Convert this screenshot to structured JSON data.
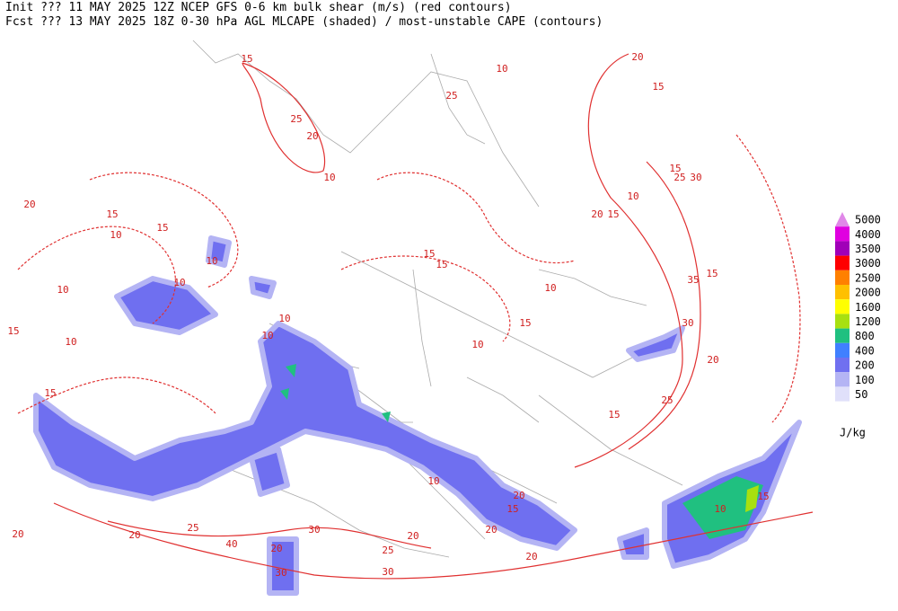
{
  "header": {
    "line1": "Init  ??? 11 MAY 2025 12Z  NCEP GFS 0-6 km bulk shear (m/s) (red contours)",
    "line2": "Fcst ??? 13 MAY 2025 18Z  0-30 hPa AGL MLCAPE (shaded) / most-unstable CAPE (contours)"
  },
  "legend": {
    "levels": [
      5000,
      4000,
      3500,
      3000,
      2500,
      2000,
      1600,
      1200,
      800,
      400,
      200,
      100,
      50
    ],
    "colors": [
      "#e088e8",
      "#e000e0",
      "#a000b8",
      "#ff0000",
      "#ff8000",
      "#ffc000",
      "#ffff00",
      "#a8e010",
      "#20c080",
      "#4080ff",
      "#7070f0",
      "#b4b4f4",
      "#e0e0fa"
    ],
    "unit": "J/kg"
  },
  "contour_labels": [
    15,
    25,
    20,
    10,
    15,
    10,
    20,
    25,
    10,
    15,
    20,
    15,
    20,
    10,
    15,
    25,
    30,
    35,
    30,
    20,
    15,
    10,
    15,
    10,
    15,
    15,
    10,
    10,
    15,
    10,
    10,
    15,
    10,
    10,
    15,
    20,
    20,
    25,
    30,
    30,
    20,
    20,
    40,
    25,
    20,
    10,
    15,
    10,
    20,
    15,
    30,
    20,
    15,
    25
  ]
}
